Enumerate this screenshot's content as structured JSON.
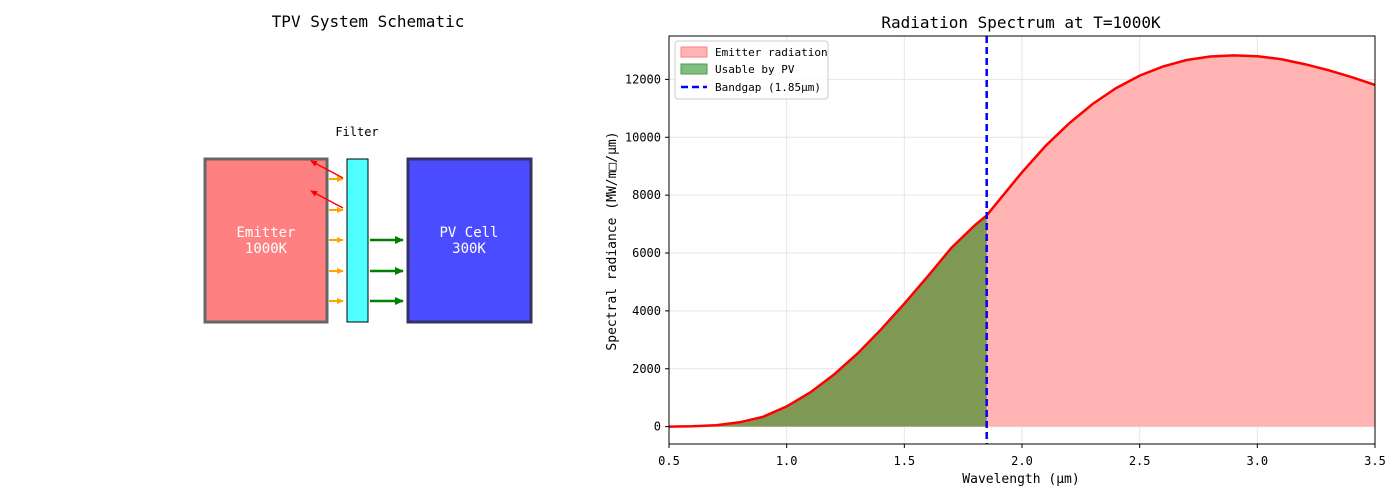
{
  "schematic": {
    "title": "TPV System Schematic",
    "filter_label": "Filter",
    "emitter": {
      "line1": "Emitter",
      "line2": "1000K",
      "color": "#ff8080",
      "border": "#666666"
    },
    "pv_cell": {
      "line1": "PV Cell",
      "line2": "300K",
      "color": "#4b4bff",
      "border": "#333366"
    },
    "filter_color": "#4dffff",
    "arrow_colors": {
      "incoming": "#ffa500",
      "transmitted": "#008000",
      "reflected": "#ff0000"
    }
  },
  "chart_data": {
    "type": "area",
    "title": "Radiation Spectrum at T=1000K",
    "xlabel": "Wavelength (μm)",
    "ylabel": "Spectral radiance (MW/m□/μm)",
    "xlim": [
      0.5,
      3.5
    ],
    "ylim": [
      -600,
      13500
    ],
    "xticks": [
      "0.5",
      "1.0",
      "1.5",
      "2.0",
      "2.5",
      "3.0",
      "3.5"
    ],
    "yticks": [
      "0",
      "2000",
      "4000",
      "6000",
      "8000",
      "10000",
      "12000"
    ],
    "grid": true,
    "legend_position": "top-left",
    "bandgap_um": 1.85,
    "series": [
      {
        "name": "Emitter radiation",
        "color": "#ff0000",
        "fill": "#ffb3b3",
        "x": [
          0.5,
          0.6,
          0.7,
          0.8,
          0.9,
          1.0,
          1.1,
          1.2,
          1.3,
          1.4,
          1.5,
          1.6,
          1.7,
          1.8,
          1.85,
          1.9,
          2.0,
          2.1,
          2.2,
          2.3,
          2.4,
          2.5,
          2.6,
          2.7,
          2.8,
          2.9,
          3.0,
          3.1,
          3.2,
          3.3,
          3.4,
          3.5
        ],
        "y": [
          1,
          10,
          50,
          150,
          340,
          700,
          1180,
          1790,
          2520,
          3350,
          4250,
          5200,
          6180,
          6960,
          7300,
          7800,
          8790,
          9700,
          10480,
          11150,
          11700,
          12130,
          12450,
          12670,
          12790,
          12830,
          12800,
          12700,
          12530,
          12320,
          12080,
          11810
        ]
      }
    ],
    "legend": [
      {
        "label": "Emitter radiation",
        "swatch": "#ffb3b3",
        "kind": "patch"
      },
      {
        "label": "Usable by PV",
        "swatch": "#7fbf7f",
        "kind": "patch"
      },
      {
        "label": "Bandgap (1.85μm)",
        "swatch": "#0000ff",
        "kind": "dashed-line"
      }
    ],
    "usable_fill": "#7f9955"
  }
}
